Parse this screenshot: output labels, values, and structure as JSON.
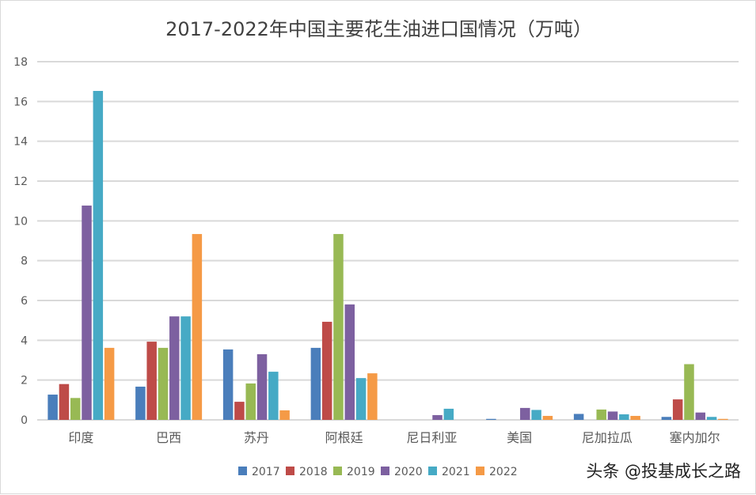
{
  "chart_data": {
    "type": "bar",
    "title": "2017-2022年中国主要花生油进口国情况（万吨）",
    "categories": [
      "印度",
      "巴西",
      "苏丹",
      "阿根廷",
      "尼日利亚",
      "美国",
      "尼加拉瓜",
      "塞内加尔"
    ],
    "series": [
      {
        "name": "2017",
        "color": "#4a7ebb",
        "values": [
          1.27,
          1.67,
          3.54,
          3.62,
          0,
          0.05,
          0.3,
          0.15
        ]
      },
      {
        "name": "2018",
        "color": "#be4b48",
        "values": [
          1.8,
          3.93,
          0.91,
          4.93,
          0,
          0,
          0,
          1.03
        ]
      },
      {
        "name": "2019",
        "color": "#98b954",
        "values": [
          1.1,
          3.62,
          1.83,
          9.34,
          0,
          0,
          0.52,
          2.8
        ]
      },
      {
        "name": "2020",
        "color": "#7d60a0",
        "values": [
          10.77,
          5.2,
          3.3,
          5.8,
          0.24,
          0.6,
          0.42,
          0.37
        ]
      },
      {
        "name": "2021",
        "color": "#46aac5",
        "values": [
          16.53,
          5.2,
          2.42,
          2.1,
          0.56,
          0.5,
          0.28,
          0.15
        ]
      },
      {
        "name": "2022",
        "color": "#f59a46",
        "values": [
          3.62,
          9.34,
          0.48,
          2.34,
          0,
          0.2,
          0.2,
          0.05
        ]
      }
    ],
    "ylim": [
      0,
      18
    ],
    "yticks": [
      "0",
      "2",
      "4",
      "6",
      "8",
      "10",
      "12",
      "14",
      "16",
      "18"
    ],
    "grid": true,
    "legend": "bottom"
  },
  "watermark": "头条 @投基成长之路"
}
